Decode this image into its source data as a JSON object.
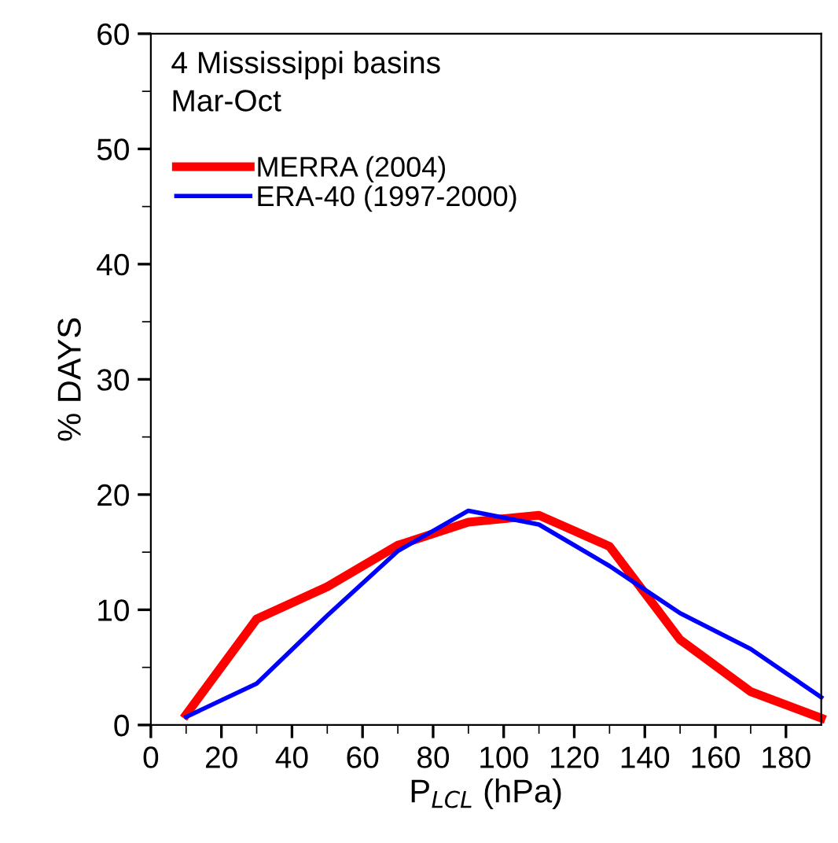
{
  "chart_data": {
    "type": "line",
    "xlabel": "P$_{LCL}$ (hPa)",
    "ylabel": "% DAYS",
    "annotations": [
      "4 Mississippi basins",
      "Mar-Oct"
    ],
    "x": [
      10,
      30,
      50,
      70,
      90,
      110,
      130,
      150,
      170,
      190
    ],
    "series": [
      {
        "name": "MERRA (2004)",
        "color": "#ff0000",
        "values": [
          0.9,
          9.2,
          12,
          15.6,
          17.6,
          18.2,
          15.5,
          7.4,
          2.9,
          0.6
        ]
      },
      {
        "name": "ERA-40 (1997-2000)",
        "color": "#0000ff",
        "values": [
          0.7,
          3.6,
          9.5,
          15.1,
          18.6,
          17.4,
          13.8,
          9.7,
          6.6,
          2.4
        ]
      }
    ],
    "xlim": [
      0,
      190
    ],
    "xticks": [
      0,
      20,
      40,
      60,
      80,
      100,
      120,
      140,
      160,
      180
    ],
    "ylim": [
      0,
      60
    ],
    "yticks": [
      0,
      10,
      20,
      30,
      40,
      50,
      60
    ],
    "legend": "top left",
    "grid": false,
    "marker": "none",
    "line_style": "solid"
  }
}
